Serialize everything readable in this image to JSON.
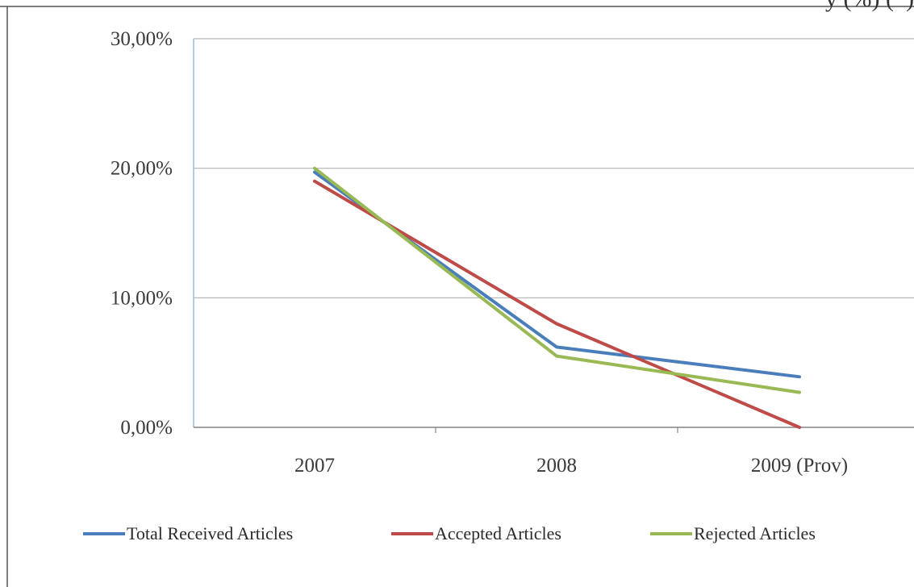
{
  "corner_fragment": "y (%) (*)",
  "colors": {
    "total": "#4a7ebb",
    "accepted": "#be4b48",
    "rejected": "#98b954",
    "grid": "#b3b3b3",
    "axis": "#9fb7d8"
  },
  "chart_data": {
    "type": "line",
    "categories": [
      "2007",
      "2008",
      "2009 (Prov)"
    ],
    "y_tick_labels": [
      "0,00%",
      "10,00%",
      "20,00%",
      "30,00%"
    ],
    "y_ticks": [
      0,
      10,
      20,
      30
    ],
    "ylim": [
      0,
      30
    ],
    "y_unit": "%",
    "grid": true,
    "legend_position": "bottom",
    "series": [
      {
        "name": "Total Received Articles",
        "key": "total",
        "values": [
          19.7,
          6.2,
          3.9
        ]
      },
      {
        "name": "Accepted Articles",
        "key": "accepted",
        "values": [
          19.0,
          8.0,
          0.0
        ]
      },
      {
        "name": "Rejected Articles",
        "key": "rejected",
        "values": [
          20.0,
          5.5,
          2.7
        ]
      }
    ]
  }
}
